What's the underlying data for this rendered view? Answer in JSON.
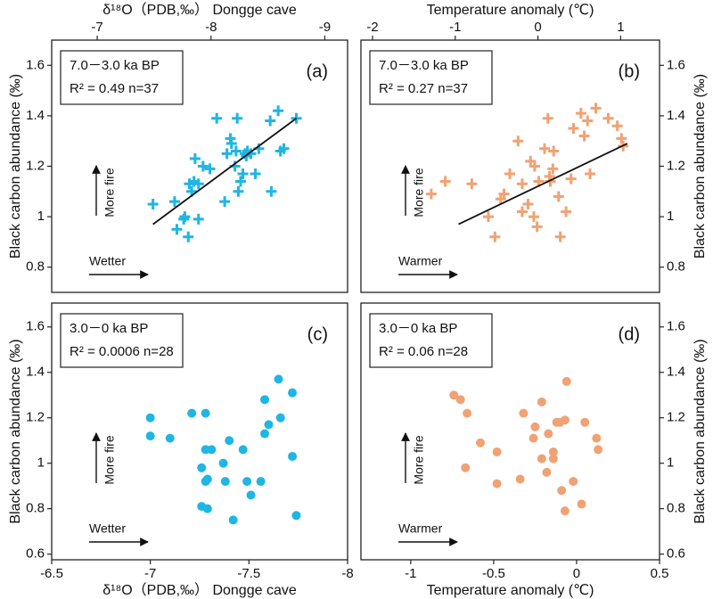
{
  "chart_data": [
    {
      "type": "scatter",
      "marker": "plus",
      "color": "#1fb6e3",
      "panel_label": "(a)",
      "period": "7.0－3.0 ka BP",
      "stats": "R² = 0.49  n=37",
      "xlabel": "δ¹⁸O（PDB,‰） Dongge cave",
      "ylabel": "Black carbon abundance (‰)",
      "y_annotation": "More fire",
      "x_annotation": "Wetter",
      "xaxis_side": "top",
      "yaxis_side": "left",
      "xlim": [
        -6.6,
        -9.2
      ],
      "xticks": [
        -7,
        -8,
        -9
      ],
      "ylim": [
        0.7,
        1.7
      ],
      "yticks": [
        0.8,
        1,
        1.2,
        1.4,
        1.6
      ],
      "x": [
        -7.49,
        -7.68,
        -7.7,
        -7.76,
        -7.77,
        -7.8,
        -7.81,
        -7.85,
        -7.86,
        -7.83,
        -7.89,
        -7.89,
        -7.93,
        -7.99,
        -8.05,
        -8.12,
        -8.14,
        -8.17,
        -8.18,
        -8.21,
        -8.22,
        -8.23,
        -8.24,
        -8.26,
        -8.28,
        -8.3,
        -8.31,
        -8.32,
        -8.35,
        -8.39,
        -8.42,
        -8.52,
        -8.53,
        -8.59,
        -8.61,
        -8.64,
        -8.75
      ],
      "values": [
        1.05,
        1.06,
        0.95,
        0.99,
        1.0,
        0.92,
        1.13,
        1.14,
        1.23,
        1.1,
        1.13,
        0.99,
        1.2,
        1.19,
        1.39,
        1.06,
        1.25,
        1.31,
        1.29,
        1.2,
        1.26,
        1.39,
        1.1,
        1.14,
        1.17,
        1.25,
        1.24,
        1.26,
        1.25,
        1.17,
        1.27,
        1.38,
        1.1,
        1.42,
        1.26,
        1.27,
        1.39
      ],
      "fit": {
        "x": [
          -7.49,
          -8.75
        ],
        "values": [
          0.97,
          1.39
        ]
      }
    },
    {
      "type": "scatter",
      "marker": "plus",
      "color": "#f0a274",
      "panel_label": "(b)",
      "period": "7.0－3.0 ka BP",
      "stats": "R² = 0.27  n=37",
      "xlabel": "Temperature anomaly (℃)",
      "ylabel": "Black carbon abundance (‰)",
      "y_annotation": "More fire",
      "x_annotation": "Warmer",
      "xaxis_side": "top",
      "yaxis_side": "right",
      "xlim": [
        -2.14,
        1.47
      ],
      "xticks": [
        -2,
        -1,
        0,
        1
      ],
      "ylim": [
        0.7,
        1.7
      ],
      "yticks": [
        0.8,
        1,
        1.2,
        1.4,
        1.6
      ],
      "x": [
        -1.29,
        -1.12,
        -0.8,
        -0.6,
        -0.52,
        -0.45,
        -0.41,
        -0.34,
        -0.24,
        -0.19,
        -0.19,
        -0.12,
        -0.09,
        -0.04,
        -0.05,
        -0.01,
        0.01,
        0.08,
        0.12,
        0.14,
        0.15,
        0.18,
        0.19,
        0.25,
        0.27,
        0.34,
        0.4,
        0.43,
        0.52,
        0.56,
        0.6,
        0.63,
        0.7,
        0.85,
        0.96,
        1.01,
        1.03
      ],
      "values": [
        1.09,
        1.14,
        1.13,
        1.0,
        0.92,
        1.07,
        1.09,
        1.17,
        1.3,
        1.13,
        1.02,
        1.05,
        1.22,
        1.2,
        1.0,
        0.96,
        1.14,
        1.27,
        1.39,
        1.16,
        1.14,
        1.19,
        1.26,
        1.08,
        0.92,
        1.02,
        1.15,
        1.35,
        1.41,
        1.32,
        1.38,
        1.17,
        1.43,
        1.39,
        1.36,
        1.31,
        1.28
      ],
      "fit": {
        "x": [
          -0.96,
          1.08
        ],
        "values": [
          0.97,
          1.29
        ]
      }
    },
    {
      "type": "scatter",
      "marker": "circle",
      "color": "#1fb6e3",
      "panel_label": "(c)",
      "period": "3.0－0 ka BP",
      "stats": "R² = 0.0006  n=28",
      "xlabel": "δ¹⁸O（PDB,‰） Dongge cave",
      "ylabel": "Black carbon abundance (‰)",
      "y_annotation": "More fire",
      "x_annotation": "Wetter",
      "xaxis_side": "bottom",
      "yaxis_side": "left",
      "xlim": [
        -6.5,
        -8
      ],
      "xticks": [
        -6.5,
        -7,
        -7.5,
        -8
      ],
      "ylim": [
        0.575,
        1.705
      ],
      "yticks": [
        0.6,
        0.8,
        1,
        1.2,
        1.4,
        1.6
      ],
      "x": [
        -7.0,
        -7.0,
        -7.1,
        -7.21,
        -7.28,
        -7.26,
        -7.28,
        -7.31,
        -7.26,
        -7.29,
        -7.28,
        -7.29,
        -7.37,
        -7.38,
        -7.4,
        -7.42,
        -7.47,
        -7.49,
        -7.51,
        -7.56,
        -7.58,
        -7.72,
        -7.58,
        -7.6,
        -7.65,
        -7.66,
        -7.72,
        -7.74
      ],
      "values": [
        1.2,
        1.12,
        1.11,
        1.22,
        1.22,
        0.98,
        1.06,
        1.06,
        0.81,
        0.8,
        0.92,
        0.93,
        1.0,
        0.92,
        1.1,
        0.75,
        1.06,
        0.92,
        0.86,
        0.92,
        1.28,
        1.31,
        1.13,
        1.17,
        1.37,
        1.2,
        1.03,
        0.77
      ]
    },
    {
      "type": "scatter",
      "marker": "circle",
      "color": "#f0a274",
      "panel_label": "(d)",
      "period": "3.0－0 ka BP",
      "stats": "R² = 0.06  n=28",
      "xlabel": "Temperature anomaly (℃)",
      "ylabel": "Black carbon abundance (‰)",
      "y_annotation": "More fire",
      "x_annotation": "Warmer",
      "xaxis_side": "bottom",
      "yaxis_side": "right",
      "xlim": [
        -1.3,
        0.5
      ],
      "xticks": [
        -1,
        -0.5,
        0,
        0.5
      ],
      "ylim": [
        0.575,
        1.705
      ],
      "yticks": [
        0.6,
        0.8,
        1,
        1.2,
        1.4,
        1.6
      ],
      "x": [
        -0.74,
        -0.7,
        -0.66,
        -0.67,
        -0.58,
        -0.48,
        -0.48,
        -0.34,
        -0.32,
        -0.25,
        -0.26,
        -0.21,
        -0.21,
        -0.18,
        -0.14,
        -0.14,
        -0.12,
        -0.1,
        -0.09,
        -0.07,
        -0.07,
        -0.06,
        -0.02,
        0.03,
        0.05,
        0.12,
        0.13,
        -0.17
      ],
      "values": [
        1.3,
        1.28,
        1.22,
        0.98,
        1.09,
        1.05,
        0.91,
        0.93,
        1.22,
        1.16,
        1.11,
        1.27,
        1.02,
        0.96,
        1.05,
        1.02,
        1.18,
        1.18,
        0.88,
        0.79,
        1.19,
        1.36,
        0.92,
        0.82,
        1.18,
        1.11,
        1.06,
        1.13
      ]
    }
  ]
}
